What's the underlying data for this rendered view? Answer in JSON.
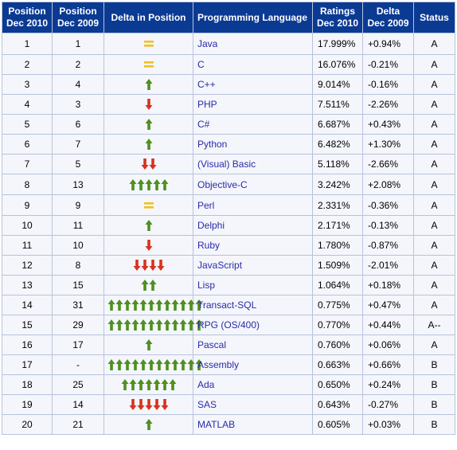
{
  "headers": {
    "pos2010": [
      "Position",
      "Dec 2010"
    ],
    "pos2009": [
      "Position",
      "Dec 2009"
    ],
    "delta_pos": "Delta in Position",
    "language": "Programming Language",
    "ratings": [
      "Ratings",
      "Dec 2010"
    ],
    "delta": [
      "Delta",
      "Dec 2009"
    ],
    "status": "Status"
  },
  "colors": {
    "header_bg": "#0b3a93",
    "row_bg": "#f4f6fb",
    "up_arrow": "#4e8f1e",
    "down_arrow": "#d8321f",
    "equal_sign": "#f0c020",
    "language_link": "#2a2aa8"
  },
  "rows": [
    {
      "pos2010": "1",
      "pos2009": "1",
      "change": "equal",
      "count": 1,
      "language": "Java",
      "rating": "17.999%",
      "delta": "+0.94%",
      "status": "A"
    },
    {
      "pos2010": "2",
      "pos2009": "2",
      "change": "equal",
      "count": 1,
      "language": "C",
      "rating": "16.076%",
      "delta": "-0.21%",
      "status": "A"
    },
    {
      "pos2010": "3",
      "pos2009": "4",
      "change": "up",
      "count": 1,
      "language": "C++",
      "rating": "9.014%",
      "delta": "-0.16%",
      "status": "A"
    },
    {
      "pos2010": "4",
      "pos2009": "3",
      "change": "down",
      "count": 1,
      "language": "PHP",
      "rating": "7.511%",
      "delta": "-2.26%",
      "status": "A"
    },
    {
      "pos2010": "5",
      "pos2009": "6",
      "change": "up",
      "count": 1,
      "language": "C#",
      "rating": "6.687%",
      "delta": "+0.43%",
      "status": "A"
    },
    {
      "pos2010": "6",
      "pos2009": "7",
      "change": "up",
      "count": 1,
      "language": "Python",
      "rating": "6.482%",
      "delta": "+1.30%",
      "status": "A"
    },
    {
      "pos2010": "7",
      "pos2009": "5",
      "change": "down",
      "count": 2,
      "language": "(Visual) Basic",
      "rating": "5.118%",
      "delta": "-2.66%",
      "status": "A"
    },
    {
      "pos2010": "8",
      "pos2009": "13",
      "change": "up",
      "count": 5,
      "language": "Objective-C",
      "rating": "3.242%",
      "delta": "+2.08%",
      "status": "A"
    },
    {
      "pos2010": "9",
      "pos2009": "9",
      "change": "equal",
      "count": 1,
      "language": "Perl",
      "rating": "2.331%",
      "delta": "-0.36%",
      "status": "A"
    },
    {
      "pos2010": "10",
      "pos2009": "11",
      "change": "up",
      "count": 1,
      "language": "Delphi",
      "rating": "2.171%",
      "delta": "-0.13%",
      "status": "A"
    },
    {
      "pos2010": "11",
      "pos2009": "10",
      "change": "down",
      "count": 1,
      "language": "Ruby",
      "rating": "1.780%",
      "delta": "-0.87%",
      "status": "A"
    },
    {
      "pos2010": "12",
      "pos2009": "8",
      "change": "down",
      "count": 4,
      "language": "JavaScript",
      "rating": "1.509%",
      "delta": "-2.01%",
      "status": "A"
    },
    {
      "pos2010": "13",
      "pos2009": "15",
      "change": "up",
      "count": 2,
      "language": "Lisp",
      "rating": "1.064%",
      "delta": "+0.18%",
      "status": "A"
    },
    {
      "pos2010": "14",
      "pos2009": "31",
      "change": "up",
      "count": 12,
      "language": "Transact-SQL",
      "rating": "0.775%",
      "delta": "+0.47%",
      "status": "A"
    },
    {
      "pos2010": "15",
      "pos2009": "29",
      "change": "up",
      "count": 12,
      "language": "RPG (OS/400)",
      "rating": "0.770%",
      "delta": "+0.44%",
      "status": "A--"
    },
    {
      "pos2010": "16",
      "pos2009": "17",
      "change": "up",
      "count": 1,
      "language": "Pascal",
      "rating": "0.760%",
      "delta": "+0.06%",
      "status": "A"
    },
    {
      "pos2010": "17",
      "pos2009": "-",
      "change": "up",
      "count": 12,
      "language": "Assembly",
      "rating": "0.663%",
      "delta": "+0.66%",
      "status": "B"
    },
    {
      "pos2010": "18",
      "pos2009": "25",
      "change": "up",
      "count": 7,
      "language": "Ada",
      "rating": "0.650%",
      "delta": "+0.24%",
      "status": "B"
    },
    {
      "pos2010": "19",
      "pos2009": "14",
      "change": "down",
      "count": 5,
      "language": "SAS",
      "rating": "0.643%",
      "delta": "-0.27%",
      "status": "B"
    },
    {
      "pos2010": "20",
      "pos2009": "21",
      "change": "up",
      "count": 1,
      "language": "MATLAB",
      "rating": "0.605%",
      "delta": "+0.03%",
      "status": "B"
    }
  ]
}
